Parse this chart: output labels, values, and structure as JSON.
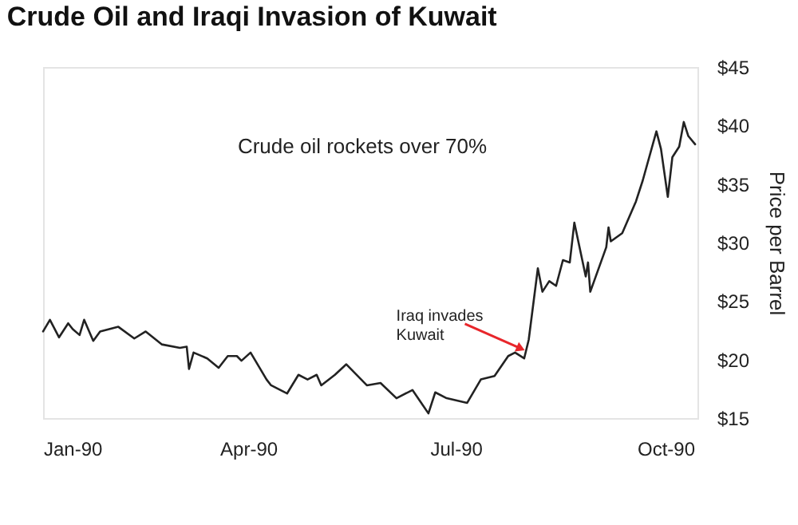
{
  "chart_data": {
    "type": "line",
    "title": "Crude Oil and Iraqi Invasion of Kuwait",
    "ylabel": "Price per Barrel",
    "x": [
      "1990-01-01",
      "1990-01-04",
      "1990-01-08",
      "1990-01-12",
      "1990-01-14",
      "1990-01-17",
      "1990-01-19",
      "1990-01-23",
      "1990-01-26",
      "1990-02-03",
      "1990-02-10",
      "1990-02-15",
      "1990-02-22",
      "1990-03-02",
      "1990-03-05",
      "1990-03-06",
      "1990-03-08",
      "1990-03-14",
      "1990-03-19",
      "1990-03-23",
      "1990-03-27",
      "1990-03-29",
      "1990-04-02",
      "1990-04-09",
      "1990-04-11",
      "1990-04-18",
      "1990-04-23",
      "1990-04-27",
      "1990-05-01",
      "1990-05-03",
      "1990-05-09",
      "1990-05-14",
      "1990-05-23",
      "1990-05-29",
      "1990-06-05",
      "1990-06-12",
      "1990-06-19",
      "1990-06-22",
      "1990-06-27",
      "1990-07-06",
      "1990-07-12",
      "1990-07-18",
      "1990-07-24",
      "1990-07-27",
      "1990-07-31",
      "1990-08-02",
      "1990-08-06",
      "1990-08-08",
      "1990-08-11",
      "1990-08-14",
      "1990-08-17",
      "1990-08-20",
      "1990-08-22",
      "1990-08-27",
      "1990-08-28",
      "1990-08-29",
      "1990-09-05",
      "1990-09-06",
      "1990-09-07",
      "1990-09-12",
      "1990-09-18",
      "1990-09-21",
      "1990-09-27",
      "1990-09-29",
      "1990-10-02",
      "1990-10-04",
      "1990-10-07",
      "1990-10-09",
      "1990-10-11",
      "1990-10-14"
    ],
    "series": [
      {
        "color": "#222222",
        "values": [
          22.4,
          23.4,
          21.9,
          23.1,
          22.6,
          22.1,
          23.4,
          21.6,
          22.4,
          22.8,
          21.8,
          22.4,
          21.3,
          21.0,
          21.1,
          19.2,
          20.6,
          20.1,
          19.3,
          20.3,
          20.3,
          19.9,
          20.6,
          18.3,
          17.8,
          17.1,
          18.7,
          18.3,
          18.7,
          17.8,
          18.7,
          19.6,
          17.8,
          18.0,
          16.7,
          17.4,
          15.4,
          17.2,
          16.7,
          16.3,
          18.3,
          18.6,
          20.3,
          20.6,
          20.1,
          21.7,
          27.8,
          25.8,
          26.7,
          26.3,
          28.5,
          28.3,
          31.7,
          27.1,
          28.3,
          25.8,
          29.6,
          31.3,
          30.1,
          30.8,
          33.5,
          35.3,
          39.5,
          38.0,
          33.9,
          37.3,
          38.2,
          40.3,
          39.1,
          38.4
        ]
      }
    ],
    "xlim": [
      "1990-01-01",
      "1990-10-15"
    ],
    "xticks": [
      {
        "value": "1990-01-01",
        "label": "Jan-90"
      },
      {
        "value": "1990-04-01",
        "label": "Apr-90"
      },
      {
        "value": "1990-07-01",
        "label": "Jul-90"
      },
      {
        "value": "1990-10-01",
        "label": "Oct-90"
      }
    ],
    "ylim": [
      15,
      45
    ],
    "yticks": [
      {
        "value": 15,
        "label": "$15"
      },
      {
        "value": 20,
        "label": "$20"
      },
      {
        "value": 25,
        "label": "$25"
      },
      {
        "value": 30,
        "label": "$30"
      },
      {
        "value": 35,
        "label": "$35"
      },
      {
        "value": 40,
        "label": "$40"
      },
      {
        "value": 45,
        "label": "$45"
      }
    ],
    "annotations": [
      "Crude oil rockets over 70%",
      {
        "text": "Iraq invades Kuwait",
        "x": "1990-08-02",
        "y": 20.6
      }
    ],
    "grid": false,
    "line_style": "solid",
    "marker": "none"
  }
}
